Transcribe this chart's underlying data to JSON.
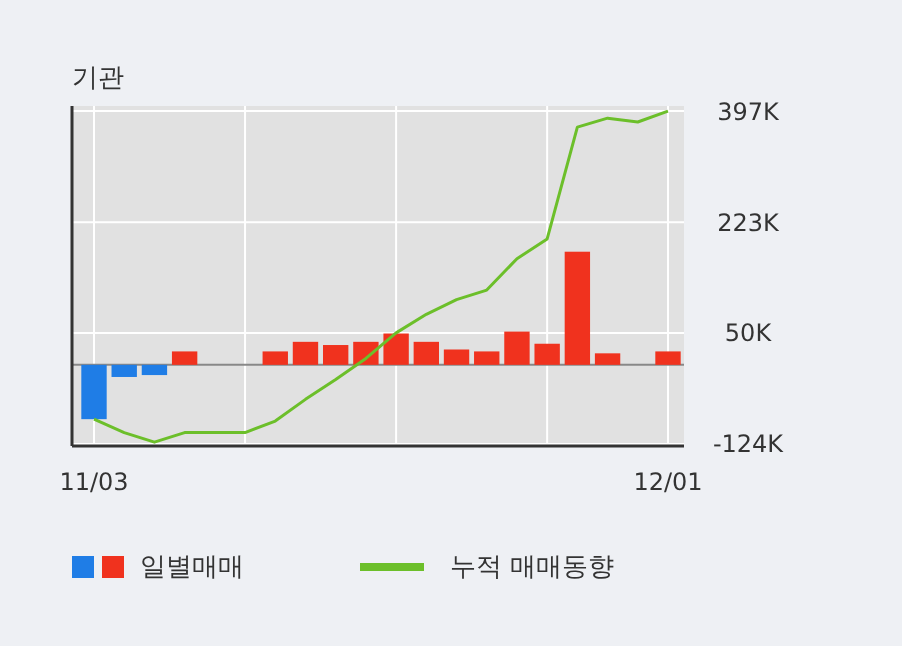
{
  "chart_data": {
    "type": "bar",
    "title": "기관",
    "categories": [
      "11/03",
      null,
      null,
      null,
      null,
      null,
      null,
      null,
      null,
      null,
      null,
      null,
      null,
      null,
      null,
      null,
      null,
      null,
      null,
      "12/01"
    ],
    "series": [
      {
        "name": "일별매매",
        "colors": [
          "#1f7de6",
          "#1f7de6",
          "#1f7de6",
          "#f0321e",
          "#f0321e",
          "#f0321e",
          "#f0321e",
          "#f0321e",
          "#f0321e",
          "#f0321e",
          "#f0321e",
          "#f0321e",
          "#f0321e",
          "#f0321e",
          "#f0321e",
          "#f0321e",
          "#f0321e",
          "#f0321e",
          "#f0321e",
          "#f0321e"
        ],
        "values": [
          -85,
          -19,
          -16,
          21,
          0,
          0,
          21,
          36,
          31,
          36,
          49,
          36,
          24,
          21,
          52,
          33,
          177,
          18,
          0,
          21
        ]
      },
      {
        "name": "누적 매매동향",
        "type": "line",
        "color": "#6cbf2a",
        "values": [
          -85,
          -106,
          -121,
          -106,
          -106,
          -106,
          -88,
          -54,
          -23,
          10,
          50,
          79,
          102,
          117,
          166,
          197,
          372,
          386,
          380,
          397
        ]
      }
    ],
    "ylim": [
      -127,
      405
    ],
    "yticks": [
      {
        "value": 397,
        "label": "397K"
      },
      {
        "value": 223,
        "label": "223K"
      },
      {
        "value": 50,
        "label": "50K"
      },
      {
        "value": -124,
        "label": "-124K"
      }
    ],
    "grid": true,
    "legend": "bottom",
    "marker": "none",
    "line_style": "solid"
  }
}
